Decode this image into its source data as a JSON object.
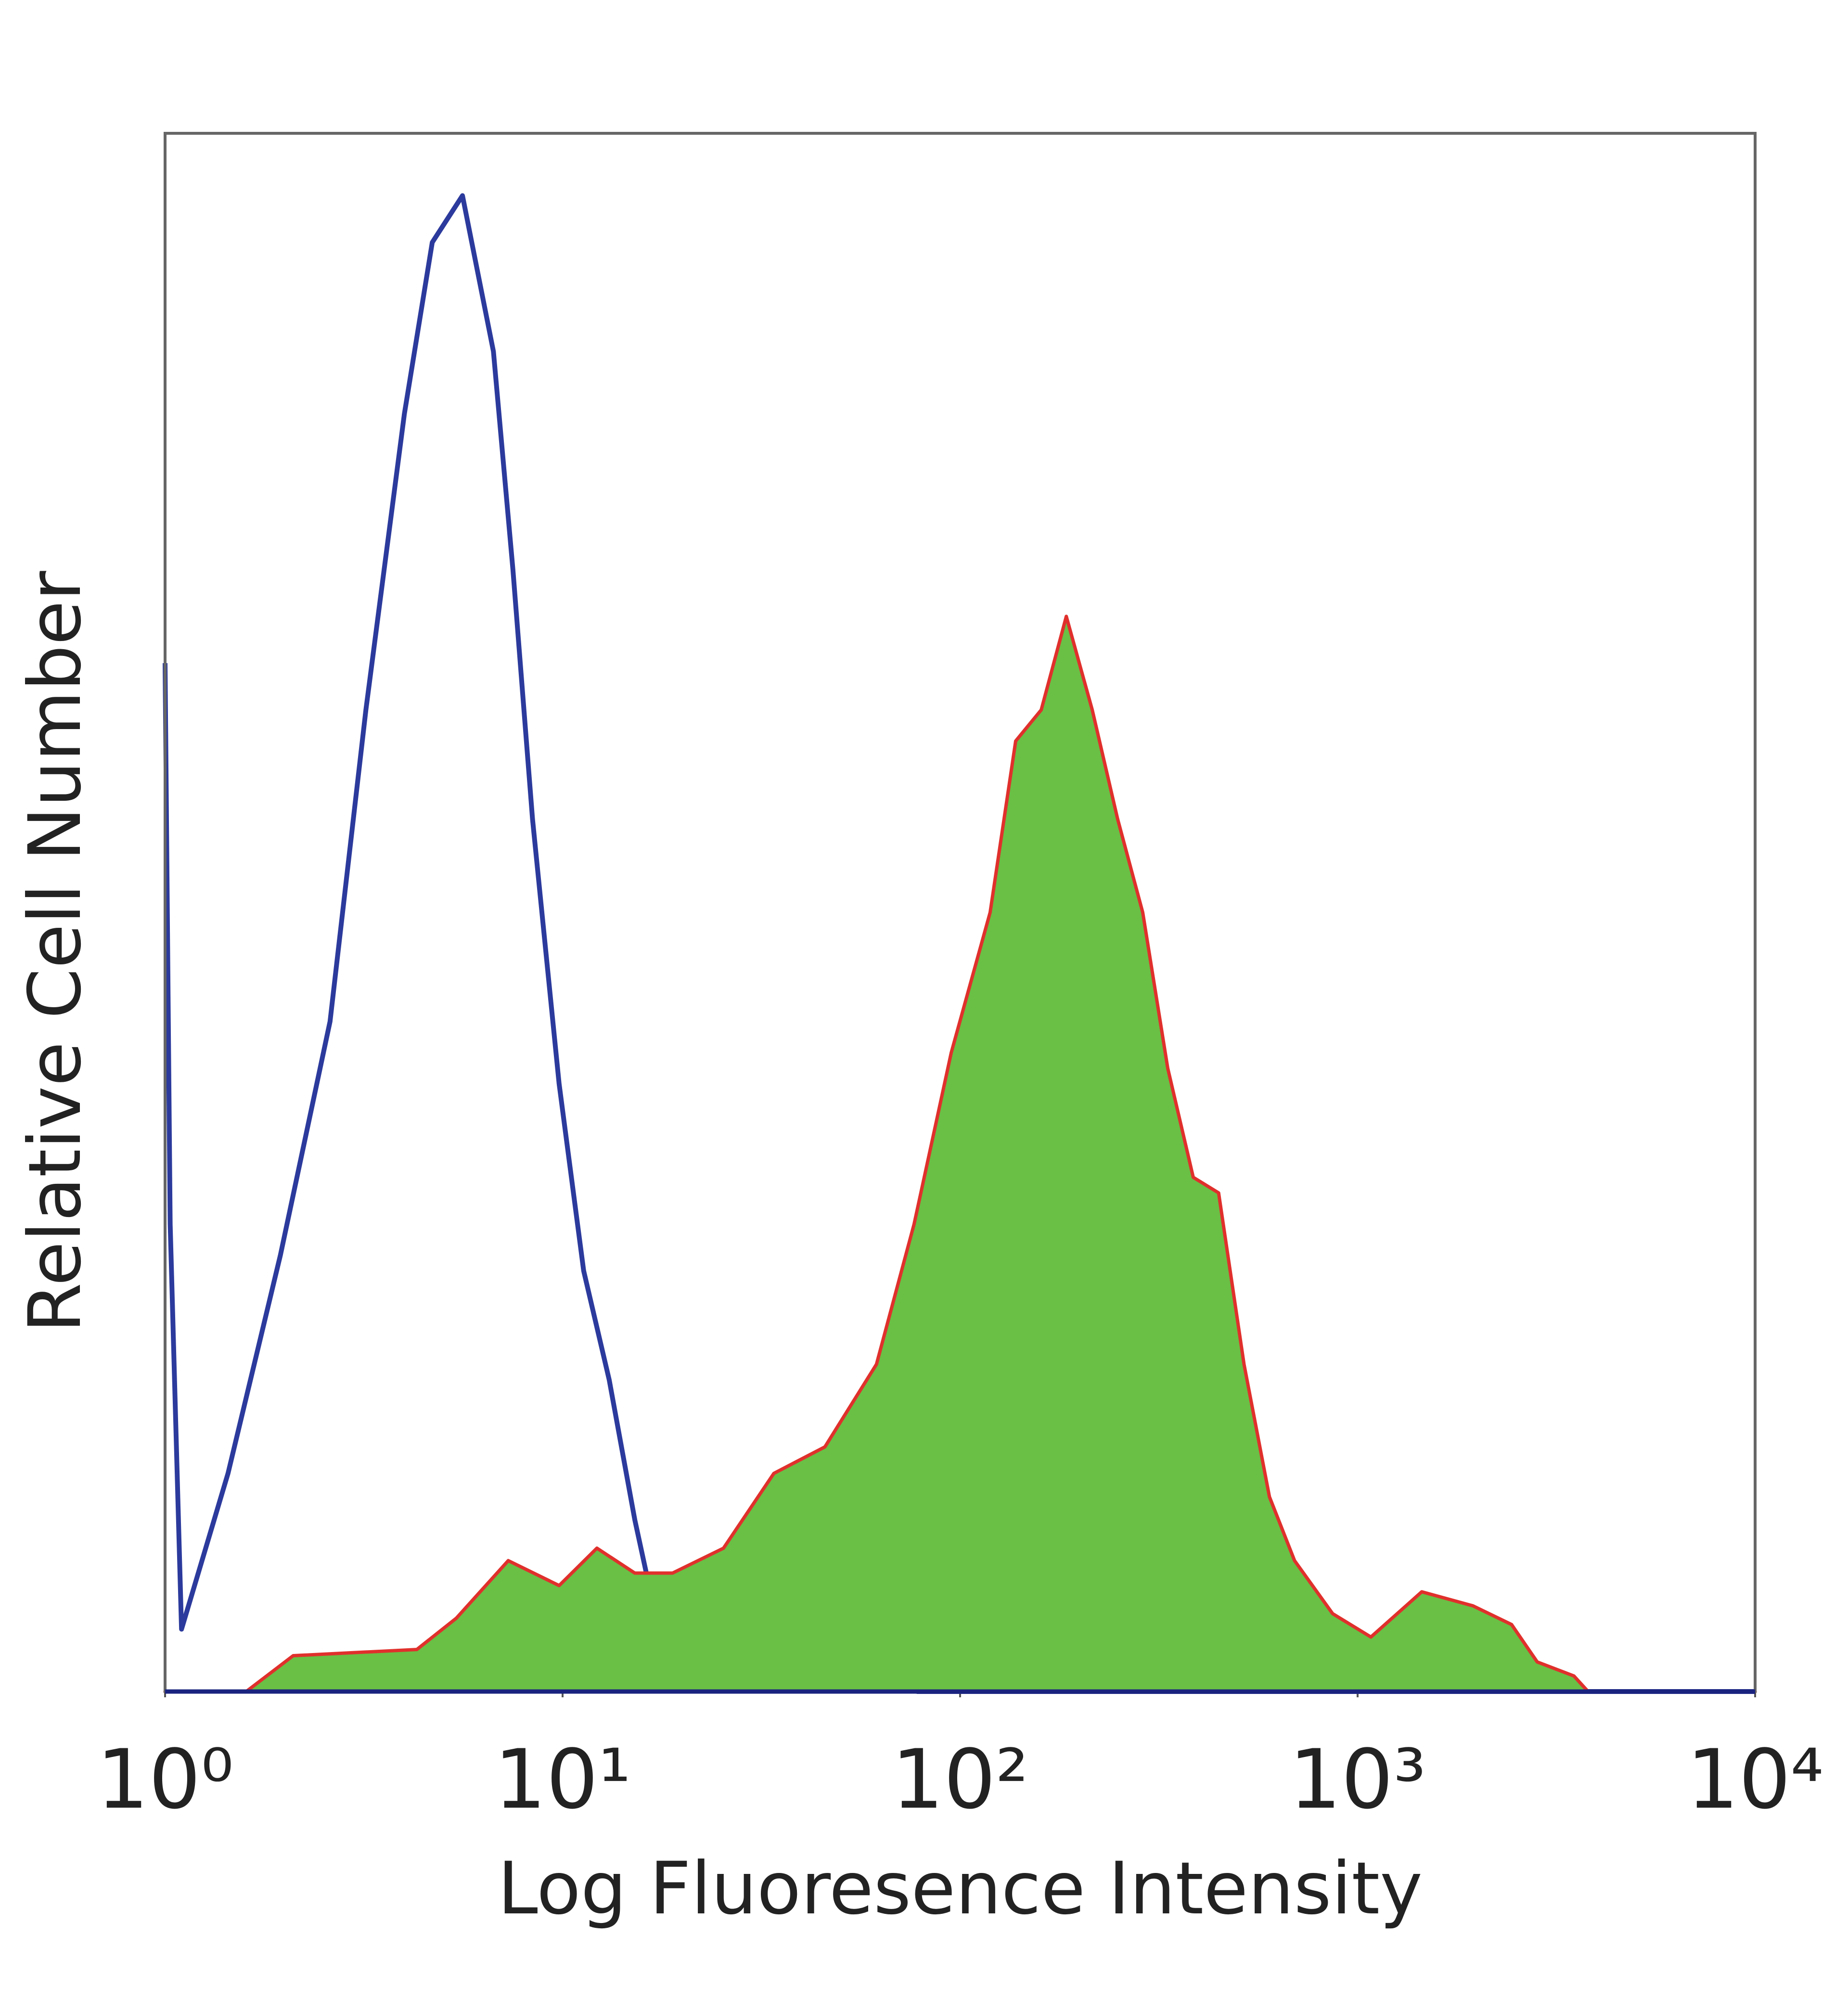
{
  "chart_data": {
    "type": "histogram-overlay",
    "x_label": "Log Fluoresence Intensity",
    "y_label": "Relative Cell Number",
    "xscale": "log",
    "xlim": [
      1,
      10000
    ],
    "xticks": [
      {
        "value": 1,
        "label": "10⁰"
      },
      {
        "value": 10,
        "label": "10¹"
      },
      {
        "value": 100,
        "label": "10²"
      },
      {
        "value": 1000,
        "label": "10³"
      },
      {
        "value": 10000,
        "label": "10⁴"
      }
    ],
    "ylim": [
      0,
      100
    ],
    "series": [
      {
        "color": "#2b3a9c",
        "filled": false,
        "x": [
          1,
          1.03,
          1.1,
          1.44,
          1.95,
          2.6,
          3.2,
          4.0,
          4.7,
          5.6,
          6.7,
          7.5,
          8.4,
          9.8,
          11.3,
          13.1,
          15.2,
          17.6,
          21.9,
          31.6,
          45.7,
          57,
          71,
          78,
          10000
        ],
        "values": [
          66,
          30,
          4,
          14,
          28,
          43,
          63,
          82,
          93,
          96,
          86,
          72,
          56,
          39,
          27,
          20,
          11,
          3.5,
          2.7,
          2.3,
          2,
          0.2,
          2,
          0,
          0
        ]
      },
      {
        "color": "#6abf45",
        "line_color": "#e0302c",
        "filled": true,
        "x": [
          1,
          1.6,
          2.1,
          4.3,
          5.4,
          7.3,
          9.8,
          12.2,
          15.2,
          18.9,
          25.4,
          34,
          45.7,
          61.6,
          76.6,
          95,
          119,
          138,
          160,
          185,
          215,
          249,
          288,
          333,
          386,
          447,
          518,
          600,
          694,
          865,
          1080,
          1450,
          1950,
          2440,
          2830,
          3500,
          3800,
          10000
        ],
        "values": [
          0,
          0,
          2.3,
          2.7,
          4.7,
          8.4,
          6.8,
          9.2,
          7.6,
          7.6,
          9.2,
          14,
          15.7,
          21,
          30,
          41,
          50,
          61,
          63,
          69,
          63,
          56,
          50,
          40,
          33,
          32,
          21,
          12.5,
          8.4,
          5,
          3.5,
          6.4,
          5.5,
          4.3,
          1.9,
          1,
          0,
          0
        ]
      }
    ]
  }
}
